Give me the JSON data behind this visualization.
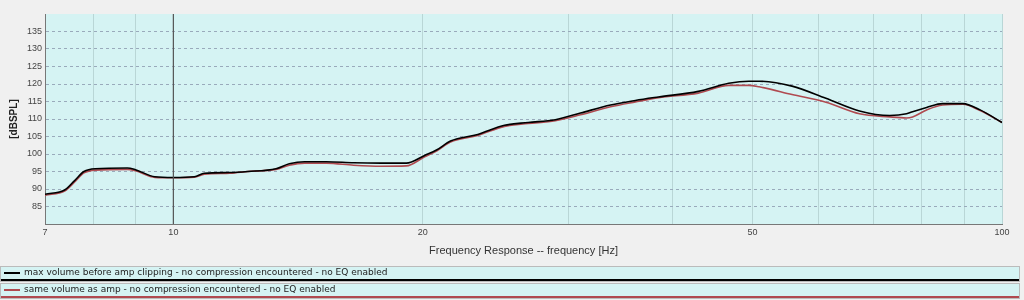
{
  "chart_data": {
    "type": "line",
    "xlabel": "Frequency Response -- frequency [Hz]",
    "ylabel": "[dBSPL]",
    "log": "x",
    "x": [
      7,
      7.4,
      7.6,
      7.8,
      8.05,
      8.8,
      9,
      9.5,
      10,
      10.6,
      10.9,
      11.7,
      12.3,
      13.3,
      13.8,
      14.4,
      15.3,
      16.5,
      17.8,
      19.1,
      20.1,
      20.8,
      21.6,
      23.3,
      25.1,
      26.8,
      28.9,
      31,
      33.7,
      36.1,
      38.5,
      43,
      46.8,
      49.5,
      50.9,
      55.8,
      61.3,
      67.3,
      73.2,
      76.7,
      78,
      81.1,
      84.8,
      89.7,
      94.1,
      100
    ],
    "series": [
      {
        "name": "max volume before amp clipping - no compression encountered - no EQ enabled",
        "color": "#000000",
        "values": [
          88.5,
          89.8,
          92.4,
          95,
          95.8,
          96,
          95.5,
          93.5,
          93.3,
          93.5,
          94.5,
          94.7,
          95,
          95.8,
          97.2,
          97.8,
          97.8,
          97.5,
          97.4,
          97.4,
          99.6,
          101.2,
          103.7,
          105.6,
          108.2,
          109,
          109.8,
          111.7,
          114,
          115.3,
          116.3,
          117.9,
          120.2,
          120.8,
          120.8,
          119.4,
          115.9,
          112.3,
          111,
          111.5,
          112.1,
          113.3,
          114.4,
          114.4,
          112.6,
          109
        ]
      },
      {
        "name": "same volume as amp - no compression encountered - no EQ enabled",
        "color": "#b04a50",
        "values": [
          88.2,
          89.5,
          92,
          94.6,
          95.4,
          95.6,
          95.2,
          93.3,
          93.2,
          93.4,
          94.2,
          94.5,
          95,
          95.6,
          96.8,
          97.4,
          97.4,
          96.8,
          96.5,
          96.6,
          99.2,
          100.9,
          103.4,
          105.3,
          107.9,
          108.7,
          109.5,
          111.2,
          113.5,
          114.9,
          116.1,
          117.4,
          119.6,
          119.6,
          119.2,
          117,
          114.8,
          111.5,
          110.6,
          110.3,
          110.6,
          112.6,
          114,
          114.2,
          112.4,
          109
        ]
      }
    ],
    "xlim": [
      7,
      100
    ],
    "xticks": [
      7,
      {
        "value": 8,
        "label": null
      },
      {
        "value": 9,
        "label": null
      },
      10,
      20,
      {
        "value": 30,
        "label": null
      },
      {
        "value": 40,
        "label": null
      },
      50,
      {
        "value": 60,
        "label": null
      },
      {
        "value": 70,
        "label": null
      },
      {
        "value": 80,
        "label": null
      },
      {
        "value": 90,
        "label": null
      },
      100
    ],
    "ylim": [
      80,
      140
    ],
    "yticks": [
      85,
      90,
      95,
      100,
      105,
      110,
      115,
      120,
      125,
      130,
      135
    ],
    "ref_lines": [
      {
        "axis": "x",
        "value": 10,
        "color": "#555555"
      }
    ],
    "grid": true,
    "legend": "bottom",
    "marker": "none",
    "line_style": "solid"
  }
}
